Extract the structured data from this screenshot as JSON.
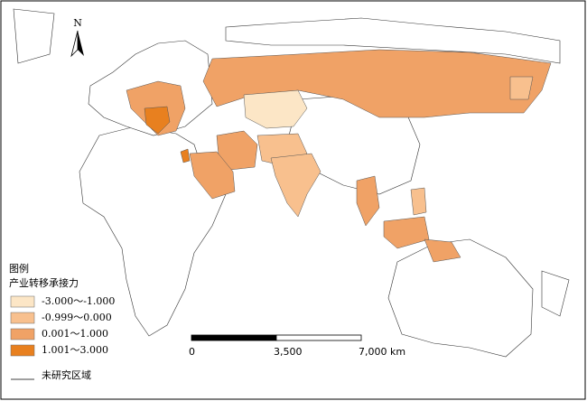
{
  "north_arrow": {
    "label": "N"
  },
  "legend": {
    "title": "图例",
    "subtitle": "产业转移承接力",
    "items": [
      {
        "label": "-3.000～-1.000",
        "color": "#fce6c6"
      },
      {
        "label": "-0.999～0.000",
        "color": "#f8c08e"
      },
      {
        "label": "0.001～1.000",
        "color": "#f0a266"
      },
      {
        "label": "1.001～3.000",
        "color": "#e8801f"
      }
    ],
    "unstudied": {
      "label": "未研究区域"
    }
  },
  "scale_bar": {
    "ticks": [
      0,
      {
        "value": 3500,
        "label": "3,500"
      },
      {
        "value": 7000,
        "label": "7,000 km"
      }
    ]
  }
}
